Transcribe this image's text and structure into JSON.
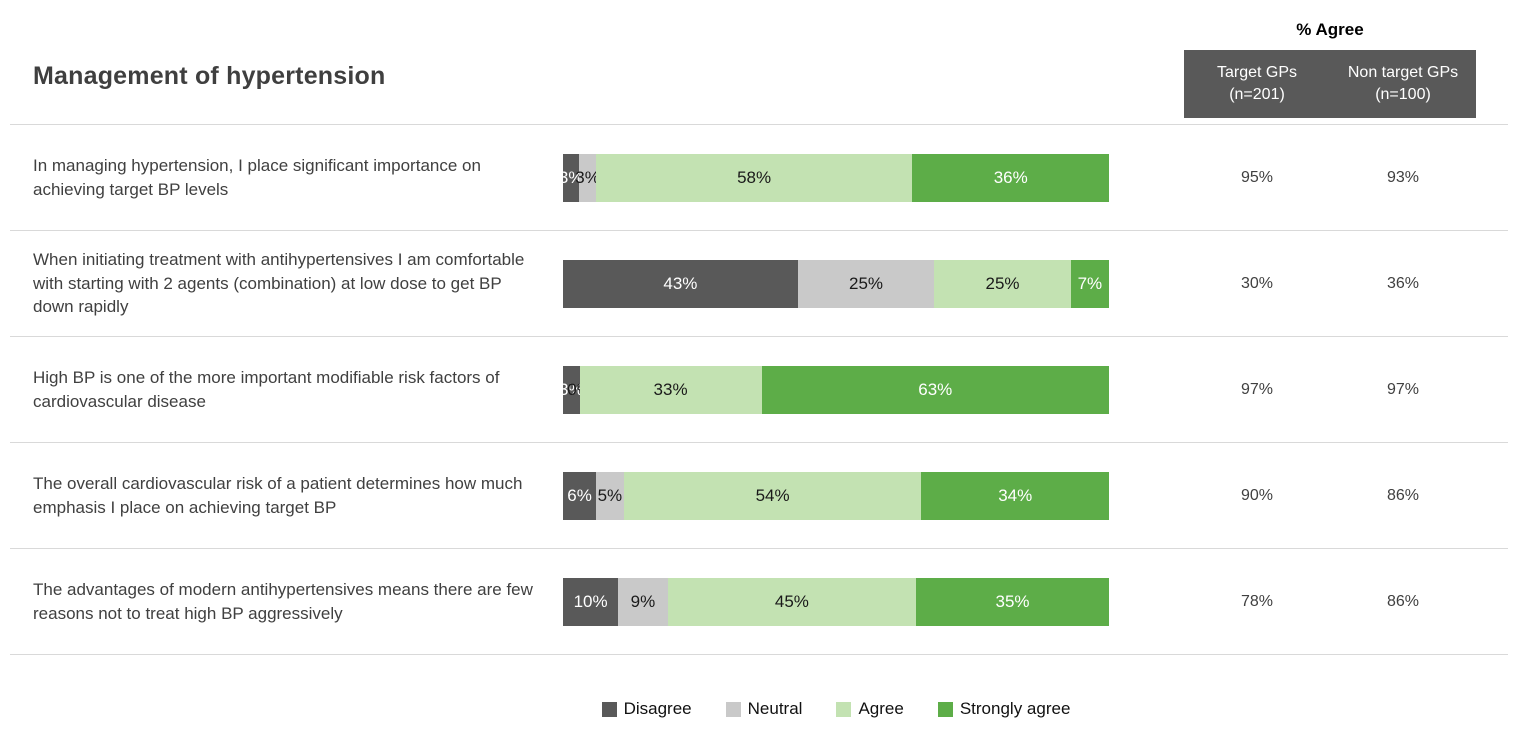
{
  "title": "Management of hypertension",
  "agree_table": {
    "header": "% Agree",
    "columns": [
      {
        "title": "Target GPs",
        "subtitle": "(n=201)"
      },
      {
        "title": "Non target GPs",
        "subtitle": "(n=100)"
      }
    ],
    "header_box_color": "#595959",
    "header_text_color": "#ffffff"
  },
  "colors": {
    "divider": "#D9D9D9",
    "title_text": "#3F3F3F",
    "body_text": "#404040"
  },
  "chart_data": {
    "type": "bar",
    "stacked": true,
    "orientation": "horizontal",
    "axis": "percent 0-100, no gridlines, no visible axes",
    "legend_position": "bottom-center",
    "series": [
      {
        "name": "Disagree",
        "color": "#595959",
        "label_color": "#FFFFFF"
      },
      {
        "name": "Neutral",
        "color": "#C9C9C9",
        "label_color": "#1A1A1A"
      },
      {
        "name": "Agree",
        "color": "#C3E2B2",
        "label_color": "#1A1A1A"
      },
      {
        "name": "Strongly agree",
        "color": "#5DAD48",
        "label_color": "#FFFFFF"
      }
    ],
    "rows": [
      {
        "statement": "In managing hypertension, I place significant importance on achieving target BP levels",
        "values": [
          3,
          3,
          58,
          36
        ],
        "labels": [
          "3%",
          "3%",
          "58%",
          "36%"
        ],
        "target_gps": "95%",
        "non_target_gps": "93%"
      },
      {
        "statement": "When initiating treatment with antihypertensives I am comfortable with starting with 2 agents (combination) at low dose to get BP down rapidly",
        "values": [
          43,
          25,
          25,
          7
        ],
        "labels": [
          "43%",
          "25%",
          "25%",
          "7%"
        ],
        "target_gps": "30%",
        "non_target_gps": "36%"
      },
      {
        "statement": "High BP is one of the more important modifiable risk factors of cardiovascular disease",
        "values": [
          3,
          0,
          33,
          63
        ],
        "labels": [
          "3%",
          "0%",
          "33%",
          "63%"
        ],
        "target_gps": "97%",
        "non_target_gps": "97%"
      },
      {
        "statement": "The overall cardiovascular risk of a patient determines how much emphasis I place on achieving target BP",
        "values": [
          6,
          5,
          54,
          34
        ],
        "labels": [
          "6%",
          "5%",
          "54%",
          "34%"
        ],
        "target_gps": "90%",
        "non_target_gps": "86%"
      },
      {
        "statement": "The advantages of modern antihypertensives means there are few reasons not to treat high BP aggressively",
        "values": [
          10,
          9,
          45,
          35
        ],
        "labels": [
          "10%",
          "9%",
          "45%",
          "35%"
        ],
        "target_gps": "78%",
        "non_target_gps": "86%"
      }
    ]
  }
}
